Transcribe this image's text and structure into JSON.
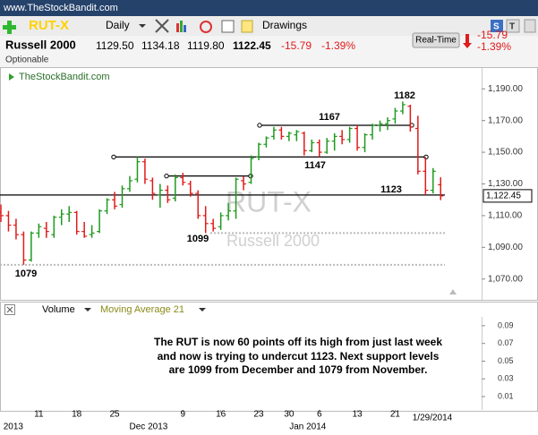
{
  "header": {
    "site": "www.TheStockBandit.com",
    "symbol": "RUT-X",
    "period": "Daily",
    "drawings": "Drawings",
    "name": "Russell 2000",
    "open": "1129.50",
    "high": "1134.18",
    "low": "1119.80",
    "last": "1122.45",
    "change": "-15.79",
    "change_pct": "-1.39%",
    "optionable": "Optionable",
    "realtime": "Real-Time",
    "side_change": "-15.79",
    "side_change_pct": "-1.39%"
  },
  "chart_data": {
    "type": "ohlc",
    "title": "TheStockBandit.com",
    "watermark": "RUT-X",
    "watermark_sub": "Russell 2000",
    "categories": [
      null,
      null,
      null,
      null,
      null,
      "11",
      null,
      null,
      null,
      null,
      "18",
      null,
      null,
      null,
      null,
      "25",
      null,
      null,
      null,
      null,
      null,
      null,
      null,
      null,
      "9",
      null,
      null,
      null,
      null,
      "16",
      null,
      null,
      null,
      null,
      "23",
      null,
      null,
      null,
      "30",
      null,
      null,
      null,
      "6",
      null,
      null,
      null,
      null,
      "13",
      null,
      null,
      null,
      null,
      "21",
      null,
      null,
      null,
      null,
      null,
      null
    ],
    "month_categories": [
      "2013",
      null,
      null,
      null,
      null,
      null,
      null,
      null,
      null,
      null,
      null,
      null,
      null,
      null,
      null,
      null,
      null,
      null,
      null,
      "Dec 2013",
      null,
      null,
      null,
      null,
      null,
      null,
      null,
      null,
      null,
      null,
      null,
      null,
      null,
      null,
      null,
      null,
      null,
      null,
      null,
      null,
      "Jan 2014",
      null,
      null,
      null,
      null,
      null,
      null,
      null,
      null,
      null,
      null,
      null,
      null,
      null,
      null,
      null,
      null,
      null,
      null
    ],
    "open": [
      1112,
      1110,
      1104,
      1098,
      1082,
      1099,
      1102,
      1098,
      1109,
      1111,
      1112,
      1100,
      1098,
      1100,
      1113,
      1120,
      1117,
      1127,
      1133,
      1144,
      1132,
      1123,
      1126,
      1121,
      1134,
      1130,
      1124,
      1110,
      1105,
      1103,
      1110,
      1113,
      1132,
      1131,
      1147,
      1155,
      1160,
      1164,
      1160,
      1161,
      1162,
      1151,
      1156,
      1150,
      1157,
      1160,
      1158,
      1165,
      1153,
      1161,
      1167,
      1168,
      1171,
      1176,
      1179,
      1165,
      1138,
      1126,
      1129.5
    ],
    "high": [
      1117,
      1113,
      1108,
      1100,
      1100,
      1105,
      1106,
      1110,
      1114,
      1116,
      1113,
      1106,
      1104,
      1114,
      1121,
      1125,
      1129,
      1135,
      1147,
      1146,
      1134,
      1130,
      1129,
      1136,
      1137,
      1132,
      1126,
      1116,
      1108,
      1112,
      1118,
      1134,
      1135,
      1148,
      1156,
      1160,
      1166,
      1166,
      1163,
      1164,
      1163,
      1158,
      1158,
      1159,
      1162,
      1164,
      1166,
      1167,
      1162,
      1168,
      1170,
      1172,
      1178,
      1182,
      1180,
      1173,
      1147,
      1140,
      1134.18
    ],
    "low": [
      1106,
      1100,
      1095,
      1079,
      1081,
      1096,
      1096,
      1096,
      1104,
      1106,
      1098,
      1096,
      1096,
      1099,
      1111,
      1114,
      1115,
      1125,
      1131,
      1130,
      1120,
      1115,
      1118,
      1119,
      1129,
      1122,
      1108,
      1099,
      1100,
      1101,
      1107,
      1108,
      1126,
      1130,
      1145,
      1153,
      1158,
      1158,
      1157,
      1157,
      1148,
      1150,
      1147,
      1149,
      1151,
      1155,
      1156,
      1151,
      1150,
      1158,
      1163,
      1164,
      1168,
      1174,
      1163,
      1136,
      1123,
      1124,
      1119.8
    ],
    "close": [
      1110,
      1104,
      1098,
      1082,
      1099,
      1103,
      1100,
      1109,
      1111,
      1112,
      1100,
      1097,
      1099,
      1113,
      1120,
      1116,
      1127,
      1132,
      1144,
      1133,
      1124,
      1126,
      1120,
      1134,
      1131,
      1124,
      1110,
      1105,
      1102,
      1110,
      1113,
      1133,
      1130,
      1146,
      1155,
      1159,
      1164,
      1160,
      1162,
      1163,
      1151,
      1156,
      1150,
      1157,
      1160,
      1158,
      1165,
      1153,
      1161,
      1167,
      1168,
      1170,
      1176,
      1180,
      1166,
      1138,
      1126,
      1138,
      1122.45
    ],
    "up_color": "#1f9a1f",
    "down_color": "#e01b1b",
    "ylim": [
      1058,
      1202
    ],
    "yticks": [
      {
        "value": 1070,
        "label": "1,070.00"
      },
      {
        "value": 1090,
        "label": "1,090.00"
      },
      {
        "value": 1110,
        "label": "1,110.00"
      },
      {
        "value": 1130,
        "label": "1,130.00"
      },
      {
        "value": 1150,
        "label": "1,150.00"
      },
      {
        "value": 1170,
        "label": "1,170.00"
      },
      {
        "value": 1190,
        "label": "1,190.00"
      }
    ],
    "last": {
      "value": 1122.45,
      "label": "1,122.45"
    },
    "levels": [
      1123,
      1147,
      1167,
      1135
    ],
    "support_levels": [
      1099,
      1079
    ],
    "annotations": [
      1182,
      1167,
      1147,
      1123,
      1099,
      1079
    ],
    "date_label": "1/29/2014",
    "volume_panel": {
      "label": "Volume",
      "overlay": "Moving Average 21",
      "ylim": [
        0,
        0.1
      ],
      "yticks": [
        0.01,
        0.03,
        0.05,
        0.07,
        0.09
      ]
    },
    "note": [
      "The RUT is now 60 points off its high from just last week",
      "and now is trying to undercut 1123. Next support levels",
      "are 1099 from December and 1079 from November."
    ]
  }
}
